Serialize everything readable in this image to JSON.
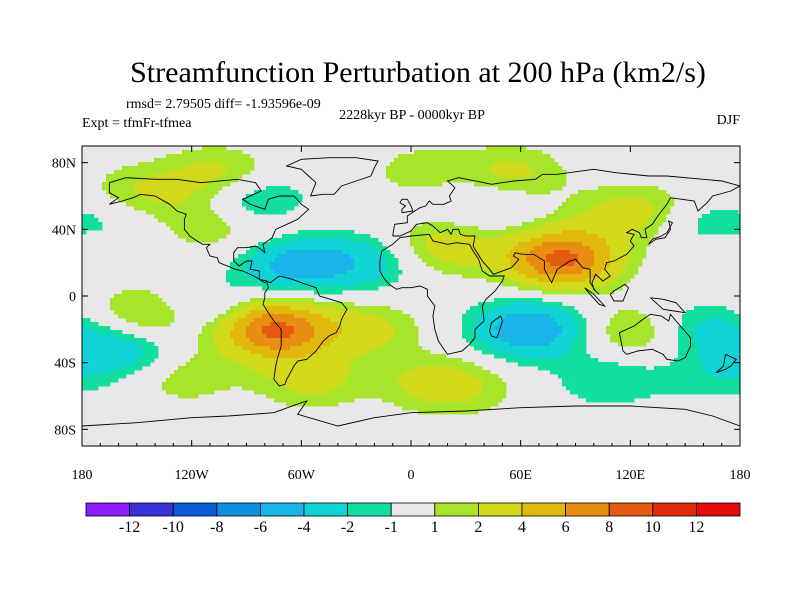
{
  "chart_data": {
    "type": "heatmap",
    "title": "Streamfunction Perturbation at 200 hPa (km2/s)",
    "stats": "rmsd= 2.79505 diff= -1.93596e-09",
    "experiment": "Expt = tfmFr-tfmea",
    "period": "2228kyr BP - 0000kyr BP",
    "season": "DJF",
    "x_tick_labels": [
      "180",
      "120W",
      "60W",
      "0",
      "60E",
      "120E",
      "180"
    ],
    "x_tick_values": [
      -180,
      -120,
      -60,
      0,
      60,
      120,
      180
    ],
    "y_tick_labels": [
      "80N",
      "40N",
      "0",
      "40S",
      "80S"
    ],
    "y_tick_values": [
      80,
      40,
      0,
      -40,
      -80
    ],
    "xlim": [
      -180,
      180
    ],
    "ylim": [
      -90,
      90
    ],
    "colorbar": {
      "levels": [
        -12,
        -10,
        -8,
        -6,
        -4,
        -2,
        -1,
        1,
        2,
        4,
        6,
        8,
        10,
        12
      ],
      "labels": [
        "-12",
        "-10",
        "-8",
        "-6",
        "-4",
        "-2",
        "-1",
        "1",
        "2",
        "4",
        "6",
        "8",
        "10",
        "12"
      ],
      "colors": [
        "#8B1CFF",
        "#3A32D8",
        "#0A5BD6",
        "#0E8FE0",
        "#19B4E8",
        "#10D3D6",
        "#10DFA0",
        "#E8E8E8",
        "#A6E52A",
        "#D2D81A",
        "#E2B80C",
        "#E88C12",
        "#E55A10",
        "#E02A0E",
        "#E50B0B"
      ]
    },
    "anomaly_centers": [
      {
        "lon": -75,
        "lat": -20,
        "value": 8.6
      },
      {
        "lon": 82,
        "lat": 22,
        "value": 8.6
      },
      {
        "lon": -62,
        "lat": 20,
        "value": -5.5
      },
      {
        "lon": 65,
        "lat": -20,
        "value": -6.0
      },
      {
        "lon": -142,
        "lat": -12,
        "value": 3.5
      },
      {
        "lon": 20,
        "lat": 30,
        "value": 3.0
      },
      {
        "lon": 55,
        "lat": 73,
        "value": 2.5
      },
      {
        "lon": -105,
        "lat": 73,
        "value": 2.5
      },
      {
        "lon": -85,
        "lat": 56,
        "value": -3.0
      },
      {
        "lon": -147,
        "lat": 63,
        "value": 2.0
      },
      {
        "lon": -165,
        "lat": 38,
        "value": -2.0
      },
      {
        "lon": -112,
        "lat": 44,
        "value": 2.0
      },
      {
        "lon": -72,
        "lat": 38,
        "value": 1.5
      },
      {
        "lon": -25,
        "lat": 20,
        "value": -2.5
      },
      {
        "lon": -25,
        "lat": -20,
        "value": 2.5
      },
      {
        "lon": -158,
        "lat": -32,
        "value": -3.5
      },
      {
        "lon": -115,
        "lat": -8,
        "value": -2.5
      },
      {
        "lon": -55,
        "lat": -50,
        "value": 2.5
      },
      {
        "lon": 10,
        "lat": -52,
        "value": 2.0
      },
      {
        "lon": 30,
        "lat": -55,
        "value": 1.5
      },
      {
        "lon": -125,
        "lat": -48,
        "value": 1.8
      },
      {
        "lon": 160,
        "lat": 43,
        "value": -2.0
      },
      {
        "lon": 112,
        "lat": 47,
        "value": 2.0
      },
      {
        "lon": 135,
        "lat": 52,
        "value": 1.5
      },
      {
        "lon": 160,
        "lat": -20,
        "value": -2.5
      },
      {
        "lon": 122,
        "lat": -22,
        "value": 2.5
      },
      {
        "lon": 165,
        "lat": -48,
        "value": -1.5
      },
      {
        "lon": 108,
        "lat": -50,
        "value": -2.0
      },
      {
        "lon": 40,
        "lat": 55,
        "value": -1.5
      },
      {
        "lon": 5,
        "lat": 75,
        "value": 1.5
      },
      {
        "lon": -175,
        "lat": 30,
        "value": 2.0
      }
    ]
  }
}
